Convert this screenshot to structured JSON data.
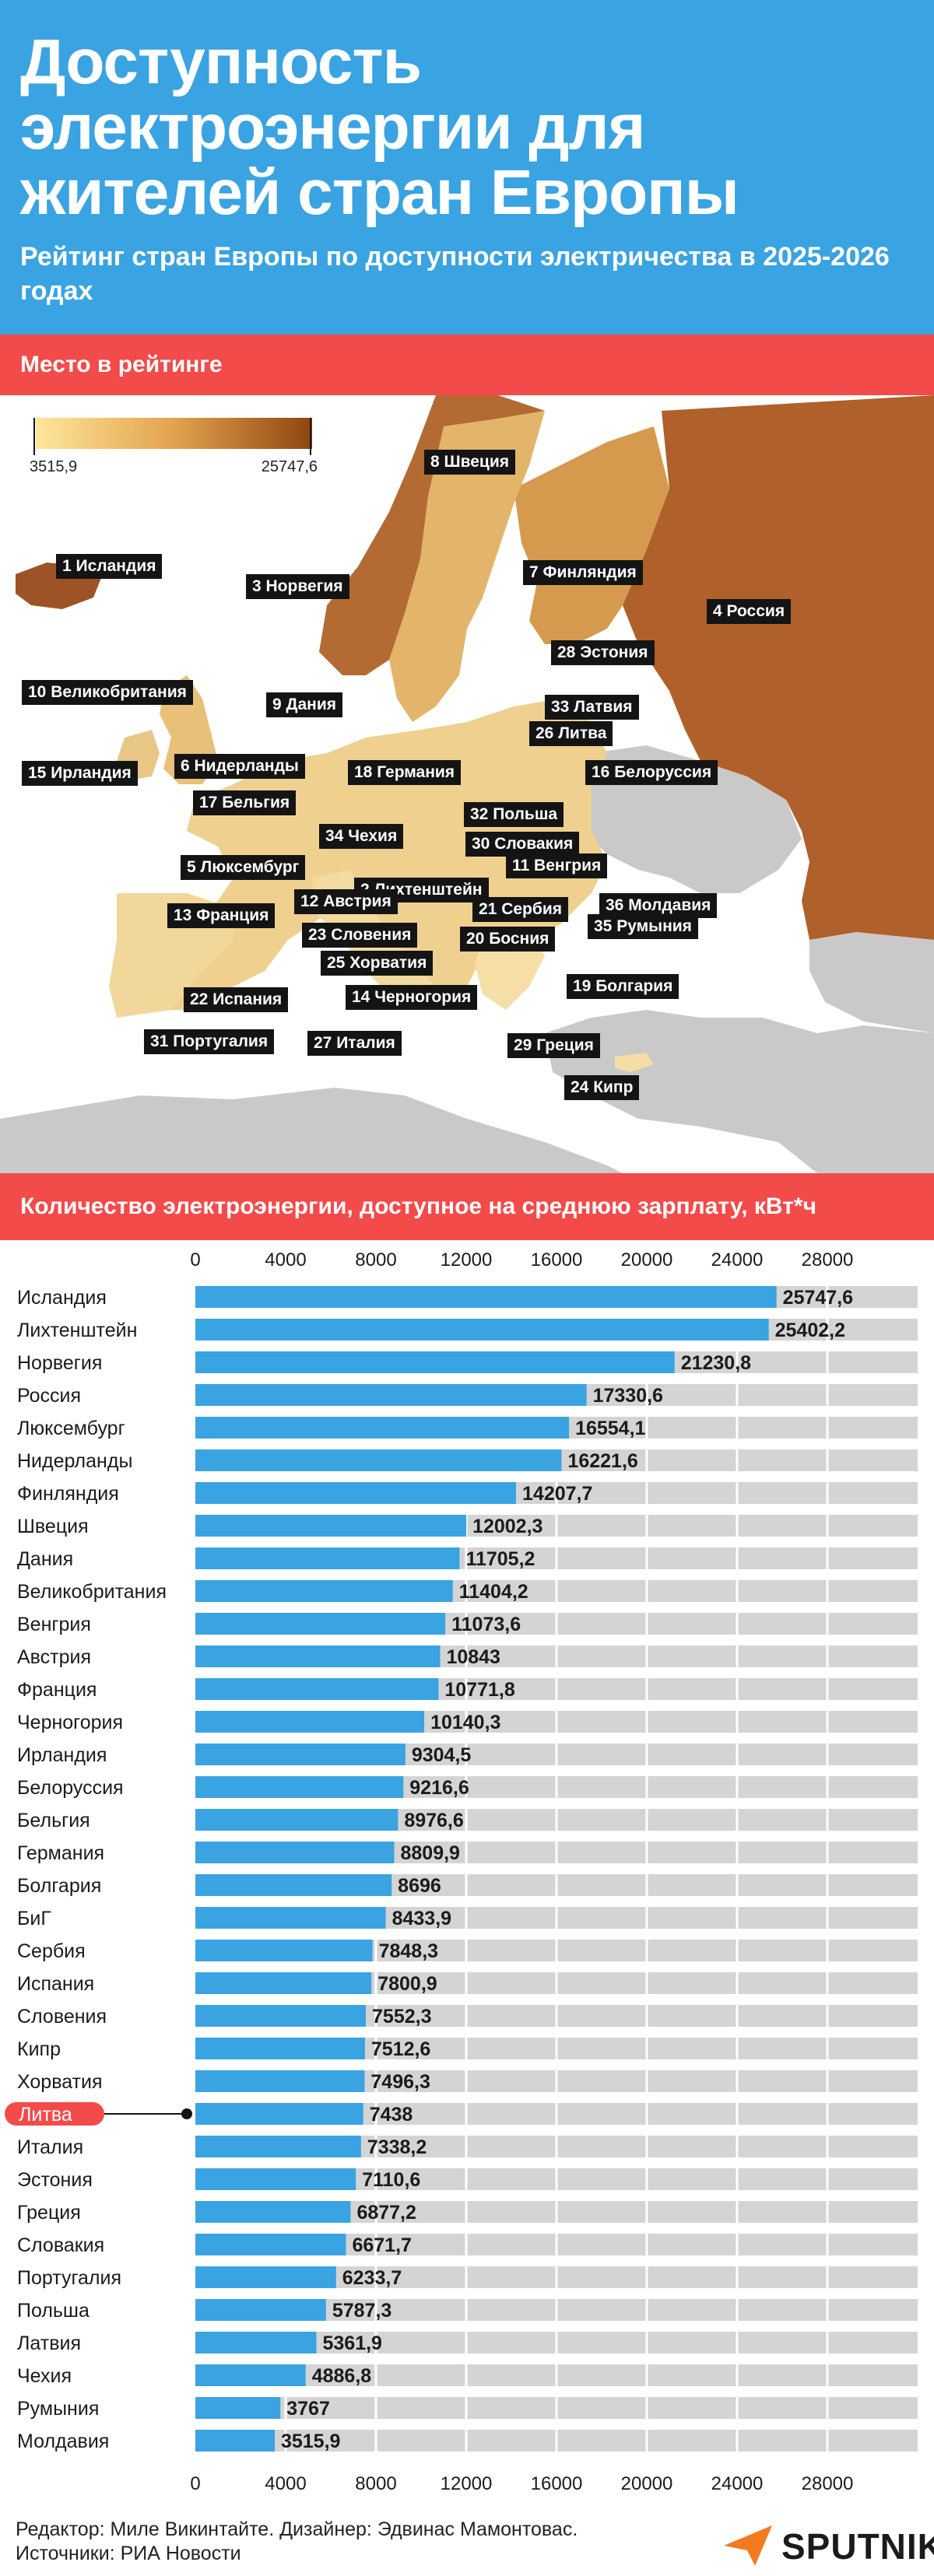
{
  "header": {
    "title": "Доступность электроэнергии для жителей стран Европы",
    "subtitle": "Рейтинг стран Европы по доступности электричества в 2025-2026 годах"
  },
  "map": {
    "band_label": "Место в рейтинге",
    "legend": {
      "min": "3515,9",
      "max": "25747,6"
    },
    "labels": [
      "1 Исландия",
      "2 Лихтенштейн",
      "3 Норвегия",
      "4 Россия",
      "5 Люксембург",
      "6 Нидерланды",
      "7 Финляндия",
      "8 Швеция",
      "9 Дания",
      "10 Великобритания",
      "11 Венгрия",
      "12 Австрия",
      "13 Франция",
      "14 Черногория",
      "15 Ирландия",
      "16 Белоруссия",
      "17 Бельгия",
      "18 Германия",
      "19 Болгария",
      "20 Босния",
      "21 Сербия",
      "22 Испания",
      "23 Словения",
      "24 Кипр",
      "25 Хорватия",
      "26 Литва",
      "27 Италия",
      "28 Эстония",
      "29 Греция",
      "30 Словакия",
      "31 Португалия",
      "32 Польша",
      "33 Латвия",
      "34 Чехия",
      "35 Румыния",
      "36 Молдавия"
    ],
    "colors": {
      "land_other": "#c9c9c9",
      "sea": "#ffffff"
    }
  },
  "chart_data": {
    "type": "bar",
    "orientation": "horizontal",
    "title": "Количество электроэнергии, доступное на среднюю зарплату, кВт*ч",
    "ticks": [
      "0",
      "4000",
      "8000",
      "12000",
      "16000",
      "20000",
      "24000",
      "28000"
    ],
    "xlim": [
      0,
      32000
    ],
    "grid": true,
    "highlight": "Литва",
    "categories": [
      "Исландия",
      "Лихтенштейн",
      "Норвегия",
      "Россия",
      "Люксембург",
      "Нидерланды",
      "Финляндия",
      "Швеция",
      "Дания",
      "Великобритания",
      "Венгрия",
      "Австрия",
      "Франция",
      "Черногория",
      "Ирландия",
      "Белоруссия",
      "Бельгия",
      "Германия",
      "Болгария",
      "БиГ",
      "Сербия",
      "Испания",
      "Словения",
      "Кипр",
      "Хорватия",
      "Литва",
      "Италия",
      "Эстония",
      "Греция",
      "Словакия",
      "Португалия",
      "Польша",
      "Латвия",
      "Чехия",
      "Румыния",
      "Молдавия"
    ],
    "values": [
      25747.6,
      25402.2,
      21230.8,
      17330.6,
      16554.1,
      16221.6,
      14207.7,
      12002.3,
      11705.2,
      11404.2,
      11073.6,
      10843,
      10771.8,
      10140.3,
      9304.5,
      9216.6,
      8976.6,
      8809.9,
      8696,
      8433.9,
      7848.3,
      7800.9,
      7552.3,
      7512.6,
      7496.3,
      7438,
      7338.2,
      7110.6,
      6877.2,
      6671.7,
      6233.7,
      5787.3,
      5361.9,
      4886.8,
      3767,
      3515.9
    ],
    "value_labels": [
      "25747,6",
      "25402,2",
      "21230,8",
      "17330,6",
      "16554,1",
      "16221,6",
      "14207,7",
      "12002,3",
      "11705,2",
      "11404,2",
      "11073,6",
      "10843",
      "10771,8",
      "10140,3",
      "9304,5",
      "9216,6",
      "8976,6",
      "8809,9",
      "8696",
      "8433,9",
      "7848,3",
      "7800,9",
      "7552,3",
      "7512,6",
      "7496,3",
      "7438",
      "7338,2",
      "7110,6",
      "6877,2",
      "6671,7",
      "6233,7",
      "5787,3",
      "5361,9",
      "4886,8",
      "3767",
      "3515,9"
    ],
    "colors": {
      "bar": "#3aa3e2",
      "track": "#d4d4d4",
      "highlight": "#f34a4a"
    }
  },
  "footer": {
    "editor": "Редактор: Миле Викинтайте.  Дизайнер: Эдвинас Мамонтовас.",
    "sources": "Источники: РИА Новости",
    "logo": "SPUTNIK"
  }
}
